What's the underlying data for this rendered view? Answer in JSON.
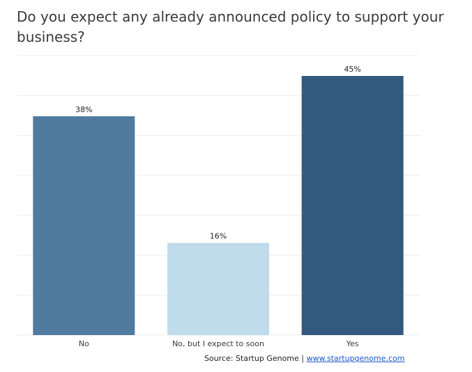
{
  "chart_data": {
    "type": "bar",
    "title": "Do you expect any already announced policy to support your business?",
    "categories": [
      "No",
      "No, but I expect to soon",
      "Yes"
    ],
    "values": [
      38,
      16,
      45
    ],
    "value_labels": [
      "38%",
      "16%",
      "45%"
    ],
    "unit": "%",
    "bar_colors": [
      "#507a9e",
      "#bfdbec",
      "#34597e"
    ],
    "ylim": [
      0,
      45
    ],
    "grid": true,
    "legend": "none",
    "xlabel": "",
    "ylabel": ""
  },
  "source": {
    "prefix": "Source: Startup Genome",
    "separator": "|",
    "link_text": "www.startupgenome.com"
  }
}
